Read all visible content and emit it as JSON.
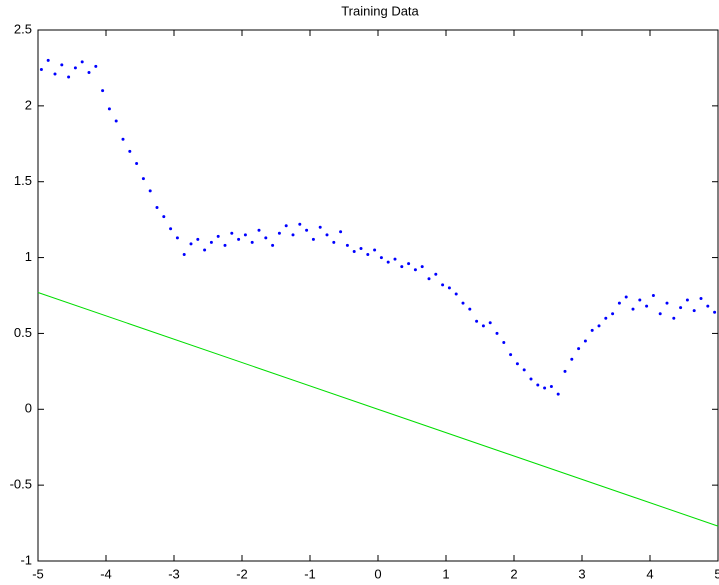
{
  "chart_data": {
    "type": "scatter",
    "title": "Training Data",
    "xlim": [
      -5,
      5
    ],
    "xticks": [
      -5,
      -4,
      -3,
      -2,
      -1,
      0,
      1,
      2,
      3,
      4,
      5
    ],
    "ylim": [
      -1,
      2.5
    ],
    "yticks": [
      -1,
      -0.5,
      0,
      0.5,
      1,
      1.5,
      2,
      2.5
    ],
    "series": [
      {
        "type": "scatter",
        "color": "#0000ff",
        "x": [
          -4.95,
          -4.85,
          -4.75,
          -4.65,
          -4.55,
          -4.45,
          -4.35,
          -4.25,
          -4.15,
          -4.05,
          -3.95,
          -3.85,
          -3.75,
          -3.65,
          -3.55,
          -3.45,
          -3.35,
          -3.25,
          -3.15,
          -3.05,
          -2.95,
          -2.85,
          -2.75,
          -2.65,
          -2.55,
          -2.45,
          -2.35,
          -2.25,
          -2.15,
          -2.05,
          -1.95,
          -1.85,
          -1.75,
          -1.65,
          -1.55,
          -1.45,
          -1.35,
          -1.25,
          -1.15,
          -1.05,
          -0.95,
          -0.85,
          -0.75,
          -0.65,
          -0.55,
          -0.45,
          -0.35,
          -0.25,
          -0.15,
          -0.05,
          0.05,
          0.15,
          0.25,
          0.35,
          0.45,
          0.55,
          0.65,
          0.75,
          0.85,
          0.95,
          1.05,
          1.15,
          1.25,
          1.35,
          1.45,
          1.55,
          1.65,
          1.75,
          1.85,
          1.95,
          2.05,
          2.15,
          2.25,
          2.35,
          2.45,
          2.55,
          2.65,
          2.75,
          2.85,
          2.95,
          3.05,
          3.15,
          3.25,
          3.35,
          3.45,
          3.55,
          3.65,
          3.75,
          3.85,
          3.95,
          4.05,
          4.15,
          4.25,
          4.35,
          4.45,
          4.55,
          4.65,
          4.75,
          4.85,
          4.95
        ],
        "y": [
          2.24,
          2.3,
          2.21,
          2.27,
          2.19,
          2.25,
          2.29,
          2.22,
          2.26,
          2.1,
          1.98,
          1.9,
          1.78,
          1.7,
          1.62,
          1.52,
          1.44,
          1.33,
          1.27,
          1.19,
          1.13,
          1.02,
          1.09,
          1.12,
          1.05,
          1.1,
          1.14,
          1.08,
          1.16,
          1.12,
          1.15,
          1.1,
          1.18,
          1.13,
          1.08,
          1.16,
          1.21,
          1.15,
          1.22,
          1.18,
          1.12,
          1.2,
          1.15,
          1.1,
          1.17,
          1.08,
          1.04,
          1.06,
          1.02,
          1.05,
          1.0,
          0.97,
          0.99,
          0.94,
          0.96,
          0.92,
          0.94,
          0.86,
          0.89,
          0.82,
          0.8,
          0.76,
          0.7,
          0.66,
          0.58,
          0.55,
          0.57,
          0.5,
          0.44,
          0.36,
          0.3,
          0.26,
          0.2,
          0.16,
          0.14,
          0.15,
          0.1,
          0.25,
          0.33,
          0.4,
          0.45,
          0.52,
          0.55,
          0.6,
          0.63,
          0.7,
          0.74,
          0.66,
          0.72,
          0.68,
          0.75,
          0.63,
          0.7,
          0.6,
          0.67,
          0.72,
          0.65,
          0.73,
          0.68,
          0.64
        ]
      },
      {
        "type": "line",
        "color": "#00dd00",
        "x": [
          -5,
          5
        ],
        "y": [
          0.77,
          -0.77
        ]
      }
    ]
  }
}
